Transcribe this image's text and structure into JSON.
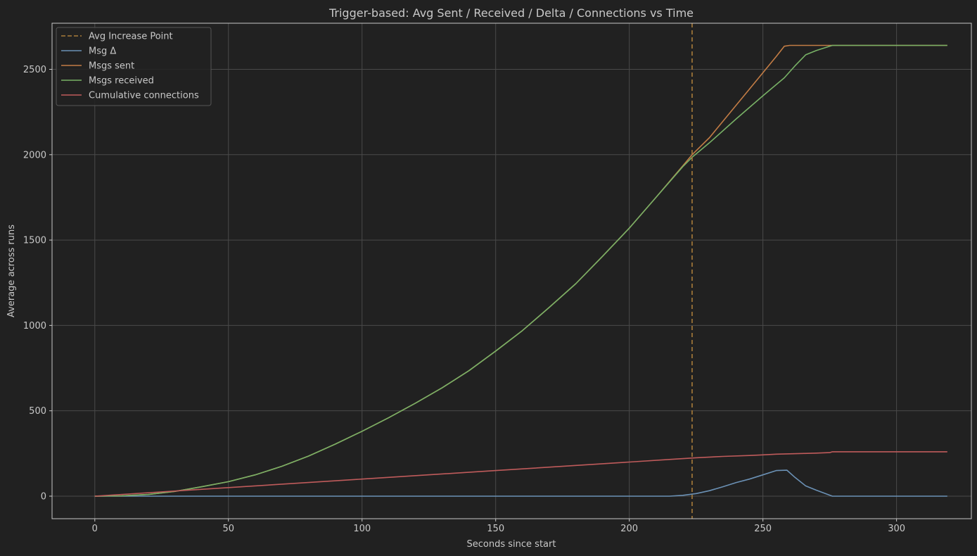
{
  "chart_data": {
    "type": "line",
    "title": "Trigger-based: Avg Sent / Received / Delta / Connections vs Time",
    "xlabel": "Seconds since start",
    "ylabel": "Average across runs",
    "xlim": [
      -16,
      328
    ],
    "ylim": [
      -132,
      2770
    ],
    "xticks": [
      "0",
      "50",
      "100",
      "150",
      "200",
      "250",
      "300"
    ],
    "xtick_values": [
      0,
      50,
      100,
      150,
      200,
      250,
      300
    ],
    "yticks": [
      "0",
      "500",
      "1000",
      "1500",
      "2000",
      "2500"
    ],
    "ytick_values": [
      0,
      500,
      1000,
      1500,
      2000,
      2500
    ],
    "grid": true,
    "legend_position": "top-left",
    "increase_point": {
      "name": "Avg Increase Point",
      "x": 223.5,
      "color": "#a97d3a"
    },
    "series": [
      {
        "name": "Msg Δ",
        "color": "#6b91b5",
        "points": [
          [
            0,
            0
          ],
          [
            215,
            0
          ],
          [
            220,
            5
          ],
          [
            225,
            15
          ],
          [
            230,
            32
          ],
          [
            235,
            55
          ],
          [
            240,
            80
          ],
          [
            245,
            100
          ],
          [
            250,
            125
          ],
          [
            255,
            150
          ],
          [
            259,
            152
          ],
          [
            262,
            110
          ],
          [
            266,
            60
          ],
          [
            270,
            35
          ],
          [
            276,
            0
          ],
          [
            319,
            0
          ]
        ]
      },
      {
        "name": "Msgs sent",
        "color": "#c27c45",
        "points": [
          [
            0,
            0
          ],
          [
            10,
            2
          ],
          [
            20,
            10
          ],
          [
            30,
            28
          ],
          [
            40,
            55
          ],
          [
            50,
            85
          ],
          [
            60,
            125
          ],
          [
            70,
            175
          ],
          [
            80,
            235
          ],
          [
            90,
            305
          ],
          [
            100,
            380
          ],
          [
            110,
            460
          ],
          [
            120,
            545
          ],
          [
            130,
            635
          ],
          [
            140,
            735
          ],
          [
            150,
            850
          ],
          [
            160,
            970
          ],
          [
            170,
            1105
          ],
          [
            180,
            1245
          ],
          [
            190,
            1405
          ],
          [
            200,
            1570
          ],
          [
            210,
            1750
          ],
          [
            220,
            1935
          ],
          [
            223.5,
            2000
          ],
          [
            230,
            2100
          ],
          [
            240,
            2290
          ],
          [
            250,
            2480
          ],
          [
            255,
            2575
          ],
          [
            258,
            2635
          ],
          [
            260,
            2640
          ],
          [
            319,
            2640
          ]
        ]
      },
      {
        "name": "Msgs received",
        "color": "#78b166",
        "points": [
          [
            0,
            0
          ],
          [
            10,
            2
          ],
          [
            20,
            10
          ],
          [
            30,
            28
          ],
          [
            40,
            55
          ],
          [
            50,
            85
          ],
          [
            60,
            125
          ],
          [
            70,
            175
          ],
          [
            80,
            235
          ],
          [
            90,
            305
          ],
          [
            100,
            380
          ],
          [
            110,
            460
          ],
          [
            120,
            545
          ],
          [
            130,
            635
          ],
          [
            140,
            735
          ],
          [
            150,
            850
          ],
          [
            160,
            970
          ],
          [
            170,
            1105
          ],
          [
            180,
            1245
          ],
          [
            190,
            1405
          ],
          [
            200,
            1570
          ],
          [
            210,
            1750
          ],
          [
            220,
            1930
          ],
          [
            223.5,
            1985
          ],
          [
            230,
            2070
          ],
          [
            240,
            2210
          ],
          [
            250,
            2345
          ],
          [
            258,
            2450
          ],
          [
            262,
            2520
          ],
          [
            266,
            2585
          ],
          [
            270,
            2610
          ],
          [
            276,
            2640
          ],
          [
            319,
            2640
          ]
        ]
      },
      {
        "name": "Cumulative connections",
        "color": "#bf5b5b",
        "points": [
          [
            0,
            0
          ],
          [
            50,
            50
          ],
          [
            100,
            100
          ],
          [
            150,
            150
          ],
          [
            200,
            200
          ],
          [
            215,
            215
          ],
          [
            225,
            225
          ],
          [
            235,
            233
          ],
          [
            245,
            238
          ],
          [
            250,
            242
          ],
          [
            255,
            246
          ],
          [
            260,
            248
          ],
          [
            265,
            250
          ],
          [
            270,
            252
          ],
          [
            275,
            255
          ],
          [
            276,
            260
          ],
          [
            319,
            260
          ]
        ]
      }
    ]
  }
}
